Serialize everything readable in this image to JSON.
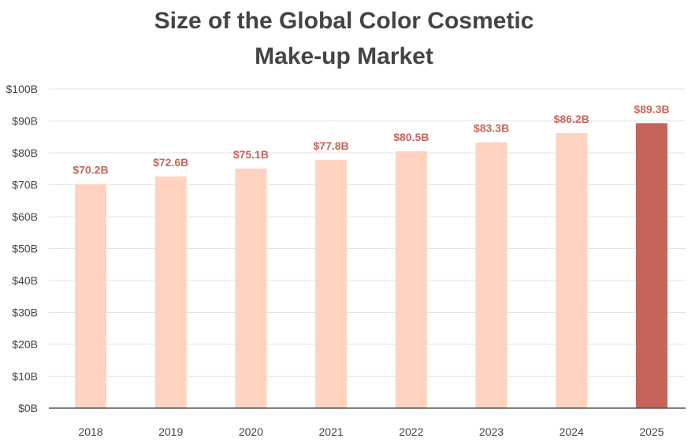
{
  "chart_data": {
    "type": "bar",
    "title": "Size of the Global Color Cosmetic Make-up Market",
    "title_lines": [
      "Size of the Global Color Cosmetic",
      "Make-up Market"
    ],
    "xlabel": "",
    "ylabel": "",
    "categories": [
      "2018",
      "2019",
      "2020",
      "2021",
      "2022",
      "2023",
      "2024",
      "2025"
    ],
    "values": [
      70.2,
      72.6,
      75.1,
      77.8,
      80.5,
      83.3,
      86.2,
      89.3
    ],
    "value_labels": [
      "$70.2B",
      "$72.6B",
      "$75.1B",
      "$77.8B",
      "$80.5B",
      "$83.3B",
      "$86.2B",
      "$89.3B"
    ],
    "highlight_index": 7,
    "ylim": [
      0,
      100
    ],
    "yticks": [
      0,
      10,
      20,
      30,
      40,
      50,
      60,
      70,
      80,
      90,
      100
    ],
    "ytick_labels": [
      "$0B",
      "$10B",
      "$20B",
      "$30B",
      "$40B",
      "$50B",
      "$60B",
      "$70B",
      "$80B",
      "$90B",
      "$100B"
    ],
    "grid": true,
    "legend": "none",
    "colors": {
      "bar": "#ffd3c0",
      "highlight_bar": "#c5655a",
      "value_label": "#c5655a",
      "grid": "#e3e3e3",
      "axis": "#555555",
      "text": "#444444"
    }
  }
}
